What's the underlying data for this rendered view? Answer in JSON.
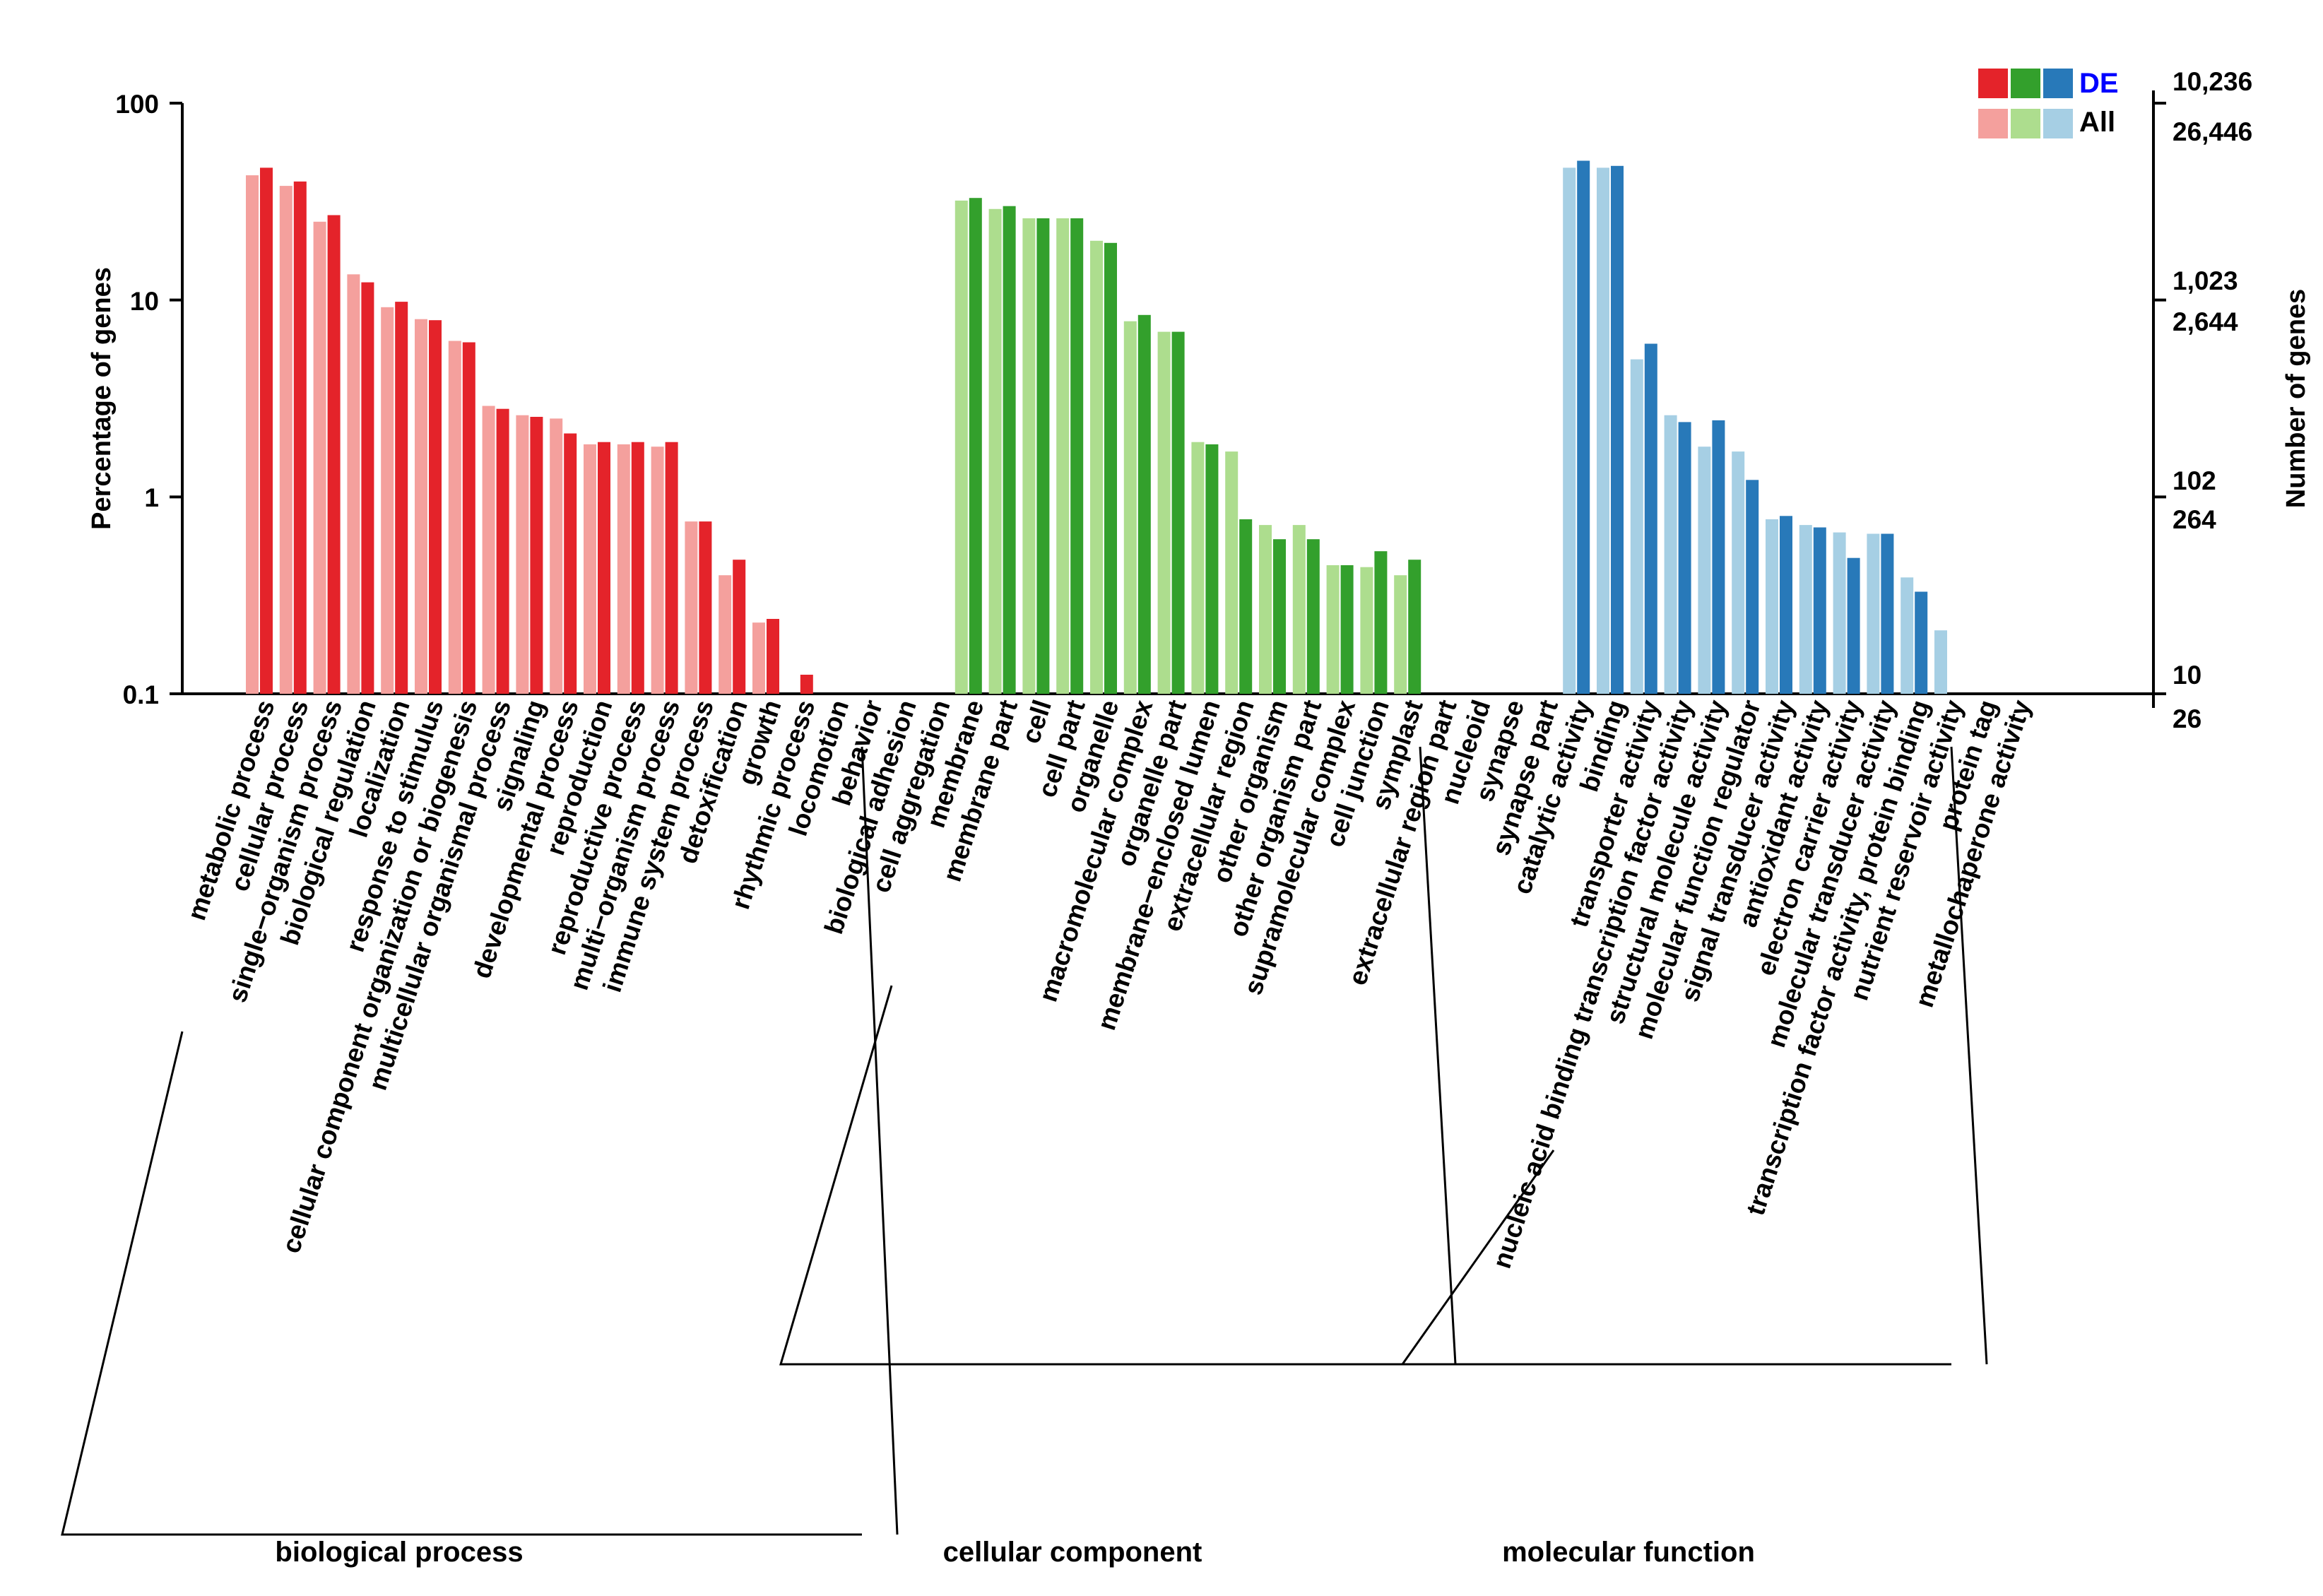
{
  "chart_data": {
    "type": "bar",
    "y_scale": "log",
    "ylabel": "Percentage of genes",
    "ylim": [
      0.1,
      100
    ],
    "y_ticks": [
      "100",
      "10",
      "1",
      "0.1"
    ],
    "ylabel_right": "Number of genes",
    "right_ticks_de": [
      "10,236",
      "1,023",
      "102",
      "10"
    ],
    "right_ticks_all": [
      "26,446",
      "2,644",
      "264",
      "26"
    ],
    "legend": {
      "de": "DE",
      "all": "All"
    },
    "colors": {
      "biological_process": {
        "de": "#e4232a",
        "all": "#f4a09d"
      },
      "cellular_component": {
        "de": "#33a02c",
        "all": "#addd8e"
      },
      "molecular_function": {
        "de": "#2879b9",
        "all": "#a6cfe4"
      },
      "de_tick": "#0000ff",
      "all_tick": "#000000"
    },
    "groups": [
      {
        "key": "biological_process",
        "name": "biological process",
        "categories": [
          {
            "label": "metabolic process",
            "all": 43,
            "de": 47
          },
          {
            "label": "cellular process",
            "all": 38,
            "de": 40
          },
          {
            "label": "single−organism process",
            "all": 25,
            "de": 27
          },
          {
            "label": "biological regulation",
            "all": 13.5,
            "de": 12.3
          },
          {
            "label": "localization",
            "all": 9.2,
            "de": 9.8
          },
          {
            "label": "response to stimulus",
            "all": 8,
            "de": 7.9
          },
          {
            "label": "cellular component organization or biogenesis",
            "all": 6.2,
            "de": 6.1
          },
          {
            "label": "multicellular organismal process",
            "all": 2.9,
            "de": 2.8
          },
          {
            "label": "signaling",
            "all": 2.6,
            "de": 2.55
          },
          {
            "label": "developmental process",
            "all": 2.5,
            "de": 2.1
          },
          {
            "label": "reproduction",
            "all": 1.85,
            "de": 1.9
          },
          {
            "label": "reproductive process",
            "all": 1.85,
            "de": 1.9
          },
          {
            "label": "multi−organism process",
            "all": 1.8,
            "de": 1.9
          },
          {
            "label": "immune system process",
            "all": 0.75,
            "de": 0.75
          },
          {
            "label": "detoxification",
            "all": 0.4,
            "de": 0.48
          },
          {
            "label": "growth",
            "all": 0.23,
            "de": 0.24
          },
          {
            "label": "rhythmic process",
            "all": 0,
            "de": 0.125
          },
          {
            "label": "locomotion",
            "all": 0,
            "de": 0
          },
          {
            "label": "behavior",
            "all": 0,
            "de": 0
          },
          {
            "label": "biological adhesion",
            "all": 0,
            "de": 0
          },
          {
            "label": "cell aggregation",
            "all": 0,
            "de": 0
          }
        ]
      },
      {
        "key": "cellular_component",
        "name": "cellular component",
        "categories": [
          {
            "label": "membrane",
            "all": 32,
            "de": 33
          },
          {
            "label": "membrane part",
            "all": 29,
            "de": 30
          },
          {
            "label": "cell",
            "all": 26,
            "de": 26
          },
          {
            "label": "cell part",
            "all": 26,
            "de": 26
          },
          {
            "label": "organelle",
            "all": 20,
            "de": 19.5
          },
          {
            "label": "macromolecular complex",
            "all": 7.8,
            "de": 8.4
          },
          {
            "label": "organelle part",
            "all": 6.9,
            "de": 6.9
          },
          {
            "label": "membrane−enclosed lumen",
            "all": 1.9,
            "de": 1.85
          },
          {
            "label": "extracellular region",
            "all": 1.7,
            "de": 0.77
          },
          {
            "label": "other organism",
            "all": 0.72,
            "de": 0.61
          },
          {
            "label": "other organism part",
            "all": 0.72,
            "de": 0.61
          },
          {
            "label": "supramolecular complex",
            "all": 0.45,
            "de": 0.45
          },
          {
            "label": "cell junction",
            "all": 0.44,
            "de": 0.53
          },
          {
            "label": "symplast",
            "all": 0.4,
            "de": 0.48
          },
          {
            "label": "extracellular region part",
            "all": 0,
            "de": 0
          },
          {
            "label": "nucleoid",
            "all": 0,
            "de": 0
          },
          {
            "label": "synapse",
            "all": 0,
            "de": 0
          },
          {
            "label": "synapse part",
            "all": 0,
            "de": 0
          }
        ]
      },
      {
        "key": "molecular_function",
        "name": "molecular function",
        "categories": [
          {
            "label": "catalytic activity",
            "all": 47,
            "de": 51
          },
          {
            "label": "binding",
            "all": 47,
            "de": 48
          },
          {
            "label": "transporter activity",
            "all": 5,
            "de": 6
          },
          {
            "label": "nucleic acid binding transcription factor activity",
            "all": 2.6,
            "de": 2.4
          },
          {
            "label": "structural molecule activity",
            "all": 1.8,
            "de": 2.45
          },
          {
            "label": "molecular function regulator",
            "all": 1.7,
            "de": 1.22
          },
          {
            "label": "signal transducer activity",
            "all": 0.77,
            "de": 0.8
          },
          {
            "label": "antioxidant activity",
            "all": 0.72,
            "de": 0.7
          },
          {
            "label": "electron carrier activity",
            "all": 0.66,
            "de": 0.49
          },
          {
            "label": "molecular transducer activity",
            "all": 0.65,
            "de": 0.65
          },
          {
            "label": "transcription factor activity, protein binding",
            "all": 0.39,
            "de": 0.33
          },
          {
            "label": "nutrient reservoir activity",
            "all": 0.21,
            "de": 0
          },
          {
            "label": "protein tag",
            "all": 0,
            "de": 0
          },
          {
            "label": "metallochaperone activity",
            "all": 0,
            "de": 0
          }
        ]
      }
    ]
  }
}
